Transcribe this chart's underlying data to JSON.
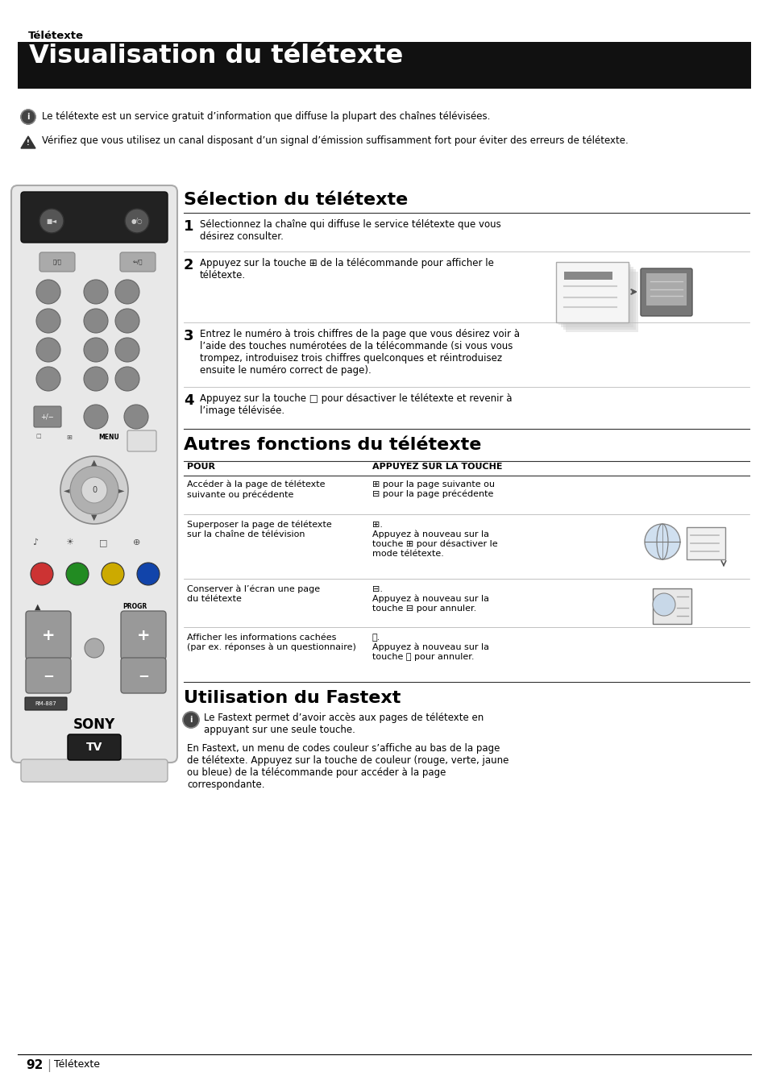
{
  "page_bg": "#ffffff",
  "header_section_label": "Télétexte",
  "header_title": "Visualisation du télétexte",
  "header_bg": "#1a1a1a",
  "header_text_color": "#ffffff",
  "info_line1": "Le télétexte est un service gratuit d’information que diffuse la plupart des chaînes télévisées.",
  "warn_line1": "Vérifiez que vous utilisez un canal disposant d’un signal d’émission suffisamment fort pour éviter des erreurs de télétexte.",
  "section1_title": "Sélection du télétexte",
  "step1_text": "Sélectionnez la chaîne qui diffuse le service télétexte que vous\ndésirez consulter.",
  "step2_text": "Appuyez sur la touche ⊞ de la télécommande pour afficher le\ntélétexte.",
  "step3_text": "Entrez le numéro à trois chiffres de la page que vous désirez voir à\nl’aide des touches numérotées de la télécommande (si vous vous\ntrompez, introduisez trois chiffres quelconques et réintroduisez\nensuite le numéro correct de page).",
  "step4_text": "Appuyez sur la touche □ pour désactiver le télétexte et revenir à\nl’image télévisée.",
  "section2_title": "Autres fonctions du télétexte",
  "table_col1": "POUR",
  "table_col2": "APPUYEZ SUR LA TOUCHE",
  "row1_col1": "Accéder à la page de télétexte\nsuivante ou précédente",
  "row1_col2": "⊞ pour la page suivante ou\n⊟ pour la page précédente",
  "row2_col1": "Superposer la page de télétexte\nsur la chaîne de télévision",
  "row2_col2": "⊞.\nAppuyez à nouveau sur la\ntouche ⊞ pour désactiver le\nmode télétexte.",
  "row3_col1": "Conserver à l’écran une page\ndu télétexte",
  "row3_col2": "⊟.\nAppuyez à nouveau sur la\ntouche ⊟ pour annuler.",
  "row4_col1": "Afficher les informations cachées\n(par ex. réponses à un questionnaire)",
  "row4_col2": "Ⓡ.\nAppuyez à nouveau sur la\ntouche Ⓡ pour annuler.",
  "section3_title": "Utilisation du Fastext",
  "fastext_info": "Le Fastext permet d’avoir accès aux pages de télétexte en\nappuyant sur une seule touche.",
  "fastext_body": "En Fastext, un menu de codes couleur s’affiche au bas de la page\nde télétexte. Appuyez sur la touche de couleur (rouge, verte, jaune\nou bleue) de la télécommande pour accéder à la page\ncorrespondante.",
  "footer_num": "92",
  "footer_label": "Télétexte"
}
